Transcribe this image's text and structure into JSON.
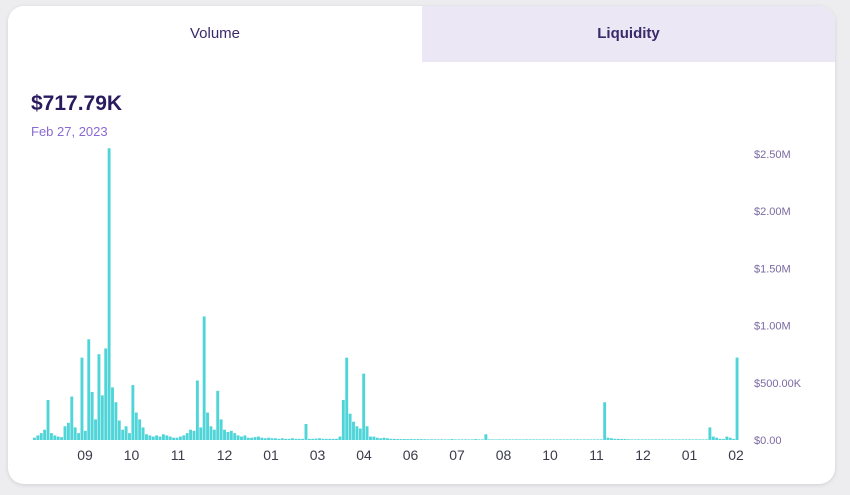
{
  "tabs": [
    {
      "label": "Volume",
      "active": true
    },
    {
      "label": "Liquidity",
      "active": false
    }
  ],
  "summary": {
    "amount": "$717.79K",
    "date": "Feb 27, 2023"
  },
  "colors": {
    "bar": "#4fd4d8",
    "accent": "#2a1a5e"
  },
  "chart_data": {
    "type": "bar",
    "title": "",
    "xlabel": "",
    "ylabel": "",
    "ylim": [
      0,
      2500000
    ],
    "y_ticks": [
      {
        "value": 0,
        "label": "$0.00"
      },
      {
        "value": 500000,
        "label": "$500.00K"
      },
      {
        "value": 1000000,
        "label": "$1.00M"
      },
      {
        "value": 1500000,
        "label": "$1.50M"
      },
      {
        "value": 2000000,
        "label": "$2.00M"
      },
      {
        "value": 2500000,
        "label": "$2.50M"
      }
    ],
    "x_ticks": [
      "09",
      "10",
      "11",
      "12",
      "01",
      "03",
      "04",
      "06",
      "07",
      "08",
      "10",
      "11",
      "12",
      "01",
      "02"
    ],
    "values": [
      20000,
      40000,
      60000,
      90000,
      350000,
      60000,
      40000,
      30000,
      25000,
      120000,
      150000,
      380000,
      110000,
      60000,
      720000,
      80000,
      880000,
      420000,
      180000,
      750000,
      390000,
      800000,
      2550000,
      460000,
      330000,
      170000,
      90000,
      120000,
      60000,
      480000,
      240000,
      180000,
      110000,
      50000,
      40000,
      30000,
      40000,
      30000,
      50000,
      40000,
      30000,
      20000,
      20000,
      30000,
      40000,
      60000,
      90000,
      80000,
      520000,
      110000,
      1080000,
      240000,
      120000,
      90000,
      430000,
      180000,
      90000,
      70000,
      80000,
      60000,
      40000,
      30000,
      40000,
      20000,
      20000,
      25000,
      30000,
      20000,
      15000,
      20000,
      15000,
      15000,
      10000,
      15000,
      10000,
      10000,
      15000,
      10000,
      10000,
      10000,
      140000,
      10000,
      10000,
      12000,
      15000,
      10000,
      10000,
      10000,
      10000,
      10000,
      30000,
      350000,
      720000,
      230000,
      160000,
      120000,
      100000,
      580000,
      120000,
      30000,
      30000,
      20000,
      15000,
      20000,
      15000,
      10000,
      10000,
      8000,
      8000,
      8000,
      8000,
      8000,
      7000,
      8000,
      7000,
      7000,
      6000,
      6000,
      6000,
      5000,
      6000,
      5000,
      5000,
      8000,
      5000,
      5000,
      5000,
      5000,
      4000,
      4000,
      8000,
      4000,
      4000,
      50000,
      4000,
      4000,
      4000,
      4000,
      3000,
      3000,
      3000,
      3000,
      3000,
      3000,
      3000,
      3000,
      3000,
      3000,
      3000,
      3000,
      3000,
      3000,
      3000,
      3000,
      3000,
      3000,
      4000,
      3000,
      3000,
      3000,
      3000,
      3000,
      3000,
      3000,
      3000,
      3000,
      3000,
      3000,
      330000,
      20000,
      15000,
      10000,
      10000,
      8000,
      8000,
      6000,
      5000,
      5000,
      5000,
      4000,
      4000,
      4000,
      4000,
      3000,
      3000,
      3000,
      3000,
      3000,
      3000,
      3000,
      3000,
      3000,
      3000,
      3000,
      3000,
      3000,
      4000,
      4000,
      5000,
      110000,
      30000,
      20000,
      10000,
      8000,
      30000,
      20000,
      10000,
      720000
    ]
  }
}
